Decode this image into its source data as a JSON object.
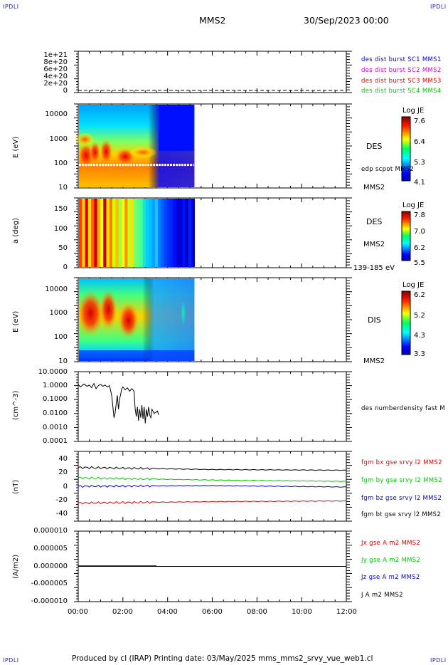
{
  "corners": {
    "tl": "IPDLI",
    "tr": "IPDLI",
    "bl": "IPDLI",
    "br": "IPDLI"
  },
  "header": {
    "spacecraft": "MMS2",
    "date": "30/Sep/2023 00:00"
  },
  "footer": "Produced by cl (IRAP)   Printing date: 03/May/2025   mms_mms2_srvy_vue_web1.cl",
  "colors": {
    "blue": "#0000c8",
    "magenta": "#d000d0",
    "red": "#e00000",
    "green": "#00c800",
    "black": "#000000"
  },
  "panels": {
    "p1": {
      "ylabel": "",
      "yticks": [
        "1e+21",
        "8e+20",
        "6e+20",
        "4e+20",
        "2e+20",
        "0"
      ],
      "legend": [
        "des dist burst SC1 MMS1",
        "des dist burst SC2 MMS2",
        "des dist burst SC3 MMS3",
        "des dist burst SC4 MMS4"
      ]
    },
    "p2": {
      "ylabel": "E (eV)",
      "yticks": [
        "10000",
        "1000",
        "100",
        "10"
      ],
      "instrument": "DES",
      "overlay": "edp scpot MMS2",
      "sc": "MMS2",
      "cbar_title": "Log JE",
      "cbar_ticks": [
        "7.6",
        "6.4",
        "5.3",
        "4.1"
      ]
    },
    "p3": {
      "ylabel": "a (deg)",
      "yticks": [
        "150",
        "100",
        "50",
        "0"
      ],
      "instrument": "DES",
      "sc": "MMS2",
      "range": "139-185 eV",
      "cbar_title": "Log JE",
      "cbar_ticks": [
        "7.8",
        "7.0",
        "6.2",
        "5.5"
      ]
    },
    "p4": {
      "ylabel": "E (eV)",
      "yticks": [
        "10000",
        "1000",
        "100",
        "10"
      ],
      "instrument": "DIS",
      "sc": "MMS2",
      "cbar_title": "Log JE",
      "cbar_ticks": [
        "6.2",
        "5.2",
        "4.3",
        "3.3"
      ]
    },
    "p5": {
      "ylabel": "(cm^-3)",
      "yticks": [
        "10.0000",
        "1.0000",
        "0.1000",
        "0.0100",
        "0.0010",
        "0.0001"
      ],
      "label": "des numberdensity fast M"
    },
    "p6": {
      "ylabel": "(nT)",
      "yticks": [
        "40",
        "20",
        "0",
        "-20",
        "-40"
      ],
      "legend": [
        "fgm bx gse srvy l2 MMS2",
        "fgm by gse srvy l2 MMS2",
        "fgm bz gse srvy l2 MMS2",
        "fgm bt gse srvy l2 MMS2"
      ]
    },
    "p7": {
      "ylabel": "(A/m2)",
      "yticks": [
        "0.000010",
        "0.000005",
        "0.000000",
        "-0.000005",
        "-0.000010"
      ],
      "legend": [
        "Jx gse A m2 MMS2",
        "Jy gse A m2 MMS2",
        "Jz gse A m2 MMS2",
        "J A m2 MMS2"
      ]
    }
  },
  "xaxis": {
    "ticks": [
      "00:00",
      "02:00",
      "04:00",
      "06:00",
      "08:00",
      "10:00",
      "12:00"
    ]
  },
  "chart_data": [
    {
      "type": "line",
      "title": "",
      "ylim": [
        0,
        1e+21
      ],
      "yticks": [
        0,
        2e+20,
        4e+20,
        6e+20,
        8e+20,
        1e+21
      ],
      "x": [
        "00:00",
        "12:00"
      ],
      "series": [
        {
          "name": "des dist burst SC1 MMS1",
          "values": [
            0,
            0
          ]
        }
      ]
    },
    {
      "type": "heatmap",
      "ylabel": "E (eV)",
      "yscale": "log",
      "ylim": [
        10,
        30000
      ],
      "xlim": [
        "00:00",
        "12:00"
      ],
      "data_extent": [
        "00:00",
        "05:10"
      ],
      "colorbar": {
        "label": "Log JE",
        "range": [
          4.1,
          7.6
        ]
      },
      "overlay": {
        "name": "edp scpot MMS2",
        "value": 90
      }
    },
    {
      "type": "heatmap",
      "ylabel": "a (deg)",
      "ylim": [
        0,
        180
      ],
      "xlim": [
        "00:00",
        "12:00"
      ],
      "data_extent": [
        "00:00",
        "05:10"
      ],
      "colorbar": {
        "label": "Log JE",
        "range": [
          5.5,
          7.8
        ]
      }
    },
    {
      "type": "heatmap",
      "ylabel": "E (eV)",
      "yscale": "log",
      "ylim": [
        10,
        30000
      ],
      "xlim": [
        "00:00",
        "12:00"
      ],
      "data_extent": [
        "00:00",
        "05:10"
      ],
      "colorbar": {
        "label": "Log JE",
        "range": [
          3.3,
          6.2
        ]
      }
    },
    {
      "type": "line",
      "ylabel": "(cm^-3)",
      "yscale": "log",
      "ylim": [
        0.0001,
        10
      ],
      "series": [
        {
          "name": "des numberdensity fast M",
          "x_hours": [
            0.0,
            0.1,
            0.25,
            0.4,
            0.5,
            0.6,
            0.7,
            0.8,
            0.9,
            1.0,
            1.1,
            1.2,
            1.3,
            1.4,
            1.5,
            1.6,
            1.65,
            1.7,
            1.75,
            1.8,
            1.85,
            1.95,
            2.0,
            2.1,
            2.2,
            2.3,
            2.4,
            2.5,
            2.55,
            2.6,
            2.65,
            2.7,
            2.75,
            2.8,
            2.85,
            2.9,
            2.95,
            3.0,
            3.05,
            3.1,
            3.15,
            3.2,
            3.25,
            3.3,
            3.4,
            3.55,
            3.6
          ],
          "values": [
            1.2,
            0.8,
            1.3,
            0.9,
            1.1,
            0.7,
            1.4,
            0.6,
            1.0,
            1.2,
            0.9,
            1.1,
            0.8,
            1.0,
            0.2,
            0.005,
            0.01,
            0.05,
            0.2,
            0.02,
            0.1,
            0.6,
            0.8,
            0.5,
            0.7,
            0.4,
            0.6,
            0.4,
            0.02,
            0.006,
            0.03,
            0.003,
            0.02,
            0.005,
            0.04,
            0.004,
            0.03,
            0.002,
            0.02,
            0.006,
            0.03,
            0.008,
            0.005,
            0.02,
            0.01,
            0.015,
            0.008
          ]
        }
      ]
    },
    {
      "type": "line",
      "ylabel": "(nT)",
      "ylim": [
        -50,
        50
      ],
      "x": [
        "00:00",
        "06:00",
        "12:00"
      ],
      "series": [
        {
          "name": "fgm bx gse srvy l2 MMS2",
          "color": "red",
          "values": [
            -24,
            -22,
            -21
          ]
        },
        {
          "name": "fgm by gse srvy l2 MMS2",
          "color": "green",
          "values": [
            12,
            9,
            7
          ]
        },
        {
          "name": "fgm bz gse srvy l2 MMS2",
          "color": "blue",
          "values": [
            0,
            1,
            -1
          ]
        },
        {
          "name": "fgm bt gse srvy l2 MMS2",
          "color": "black",
          "values": [
            27,
            24,
            23
          ]
        }
      ]
    },
    {
      "type": "line",
      "ylabel": "(A/m2)",
      "ylim": [
        -1e-05,
        1e-05
      ],
      "x": [
        "00:00",
        "03:30"
      ],
      "series": [
        {
          "name": "J A m2 MMS2",
          "values": [
            0,
            0
          ]
        }
      ]
    }
  ]
}
